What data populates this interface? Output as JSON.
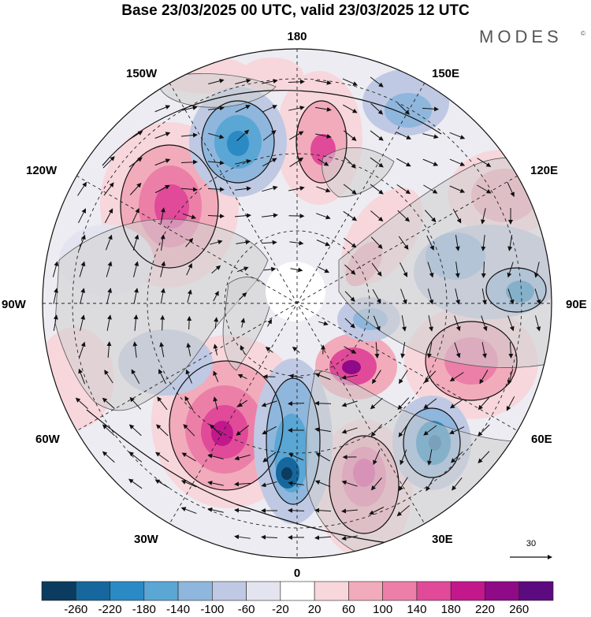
{
  "header": {
    "title": "Base 23/03/2025 00 UTC, valid 23/03/2025 12 UTC",
    "brand": "MODES",
    "brand_mark": "©"
  },
  "map": {
    "longitude_labels": {
      "top": "180",
      "bottom": "0",
      "left": "90W",
      "right": "90E",
      "upper_left_outer": "150W",
      "upper_left_mid": "120W",
      "upper_right_outer": "150E",
      "upper_right_mid": "120E",
      "lower_left_outer": "30W",
      "lower_left_mid": "60W",
      "lower_right_outer": "30E",
      "lower_right_mid": "60E"
    },
    "reference_vector_label": "30",
    "colors": {
      "land": "#cfcfcf",
      "coast": "#555555",
      "grid": "#222222",
      "contour": "#111111",
      "arrow": "#111111"
    }
  },
  "colorbar": {
    "labels": [
      "-260",
      "-220",
      "-180",
      "-140",
      "-100",
      "-60",
      "-20",
      "20",
      "60",
      "100",
      "140",
      "180",
      "220",
      "260"
    ],
    "colors": [
      "#0b3b5e",
      "#16679d",
      "#2a8ac4",
      "#5aa6d4",
      "#8fb6dc",
      "#bfc9e3",
      "#e4e4f0",
      "#ffffff",
      "#f7d7dc",
      "#f2abbb",
      "#ec7fa8",
      "#e04a99",
      "#c2188c",
      "#8e0a86",
      "#5c0a80"
    ]
  }
}
